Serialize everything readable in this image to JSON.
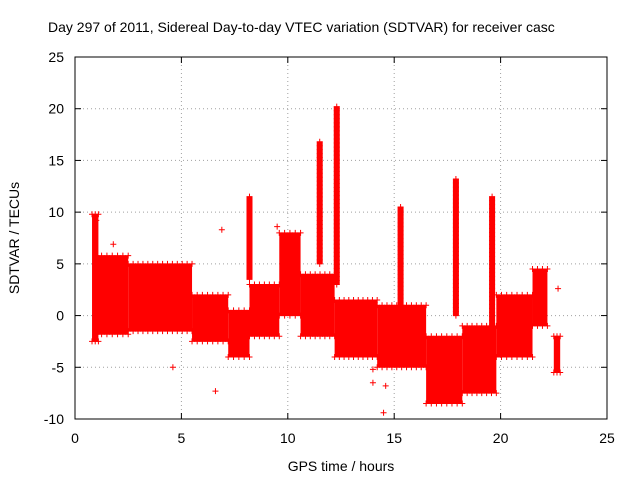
{
  "chart_data": {
    "type": "scatter",
    "title": "Day 297 of 2011, Sidereal Day-to-day VTEC variation (SDTVAR) for receiver casc",
    "xlabel": "GPS time / hours",
    "ylabel": "SDTVAR / TECUs",
    "xlim": [
      0,
      25
    ],
    "ylim": [
      -10,
      25
    ],
    "xticks": [
      0,
      5,
      10,
      15,
      20,
      25
    ],
    "yticks": [
      -10,
      -5,
      0,
      5,
      10,
      15,
      20,
      25
    ],
    "grid": true,
    "series": [
      {
        "name": "SDTVAR",
        "color": "#ff0000",
        "marker": "+",
        "bands": [
          {
            "x": [
              0.8,
              1.1
            ],
            "y": [
              9.8,
              -2.5
            ]
          },
          {
            "x": [
              1.0,
              2.5
            ],
            "y": [
              5.8,
              -1.8
            ]
          },
          {
            "x": [
              2.5,
              5.5
            ],
            "y": [
              5.0,
              -1.5
            ]
          },
          {
            "x": [
              5.5,
              7.2
            ],
            "y": [
              2.0,
              -2.5
            ]
          },
          {
            "x": [
              7.2,
              8.2
            ],
            "y": [
              0.5,
              -4.0
            ]
          },
          {
            "x": [
              8.2,
              9.6
            ],
            "y": [
              3.0,
              -2.0
            ]
          },
          {
            "x": [
              9.6,
              10.6
            ],
            "y": [
              8.0,
              0.0
            ]
          },
          {
            "x": [
              10.6,
              12.2
            ],
            "y": [
              4.0,
              -2.0
            ]
          },
          {
            "x": [
              12.2,
              14.2
            ],
            "y": [
              1.5,
              -4.0
            ]
          },
          {
            "x": [
              14.2,
              16.5
            ],
            "y": [
              1.0,
              -5.0
            ]
          },
          {
            "x": [
              16.5,
              18.2
            ],
            "y": [
              -2.0,
              -8.5
            ]
          },
          {
            "x": [
              18.2,
              19.8
            ],
            "y": [
              -1.0,
              -7.5
            ]
          },
          {
            "x": [
              19.8,
              21.5
            ],
            "y": [
              2.0,
              -4.0
            ]
          },
          {
            "x": [
              21.5,
              22.2
            ],
            "y": [
              4.5,
              -1.0
            ]
          },
          {
            "x": [
              22.5,
              22.8
            ],
            "y": [
              -2.0,
              -5.5
            ]
          }
        ],
        "spikes": [
          {
            "x": 8.2,
            "top": 11.5,
            "bottom": 3.5
          },
          {
            "x": 11.5,
            "top": 16.8,
            "bottom": 5.0
          },
          {
            "x": 12.3,
            "top": 20.2,
            "bottom": 3.0
          },
          {
            "x": 15.3,
            "top": 10.5,
            "bottom": -1.0
          },
          {
            "x": 17.9,
            "top": 13.2,
            "bottom": 0.0
          },
          {
            "x": 19.6,
            "top": 11.5,
            "bottom": -2.0
          }
        ],
        "outliers": [
          {
            "x": 1.0,
            "y": 9.2
          },
          {
            "x": 1.8,
            "y": 6.9
          },
          {
            "x": 4.6,
            "y": -5.0
          },
          {
            "x": 6.6,
            "y": -7.3
          },
          {
            "x": 6.9,
            "y": 8.3
          },
          {
            "x": 9.5,
            "y": 8.6
          },
          {
            "x": 14.0,
            "y": -5.2
          },
          {
            "x": 14.0,
            "y": -6.5
          },
          {
            "x": 14.5,
            "y": -9.4
          },
          {
            "x": 14.6,
            "y": -6.8
          },
          {
            "x": 20.3,
            "y": -3.2
          },
          {
            "x": 22.7,
            "y": 2.6
          }
        ]
      }
    ]
  }
}
